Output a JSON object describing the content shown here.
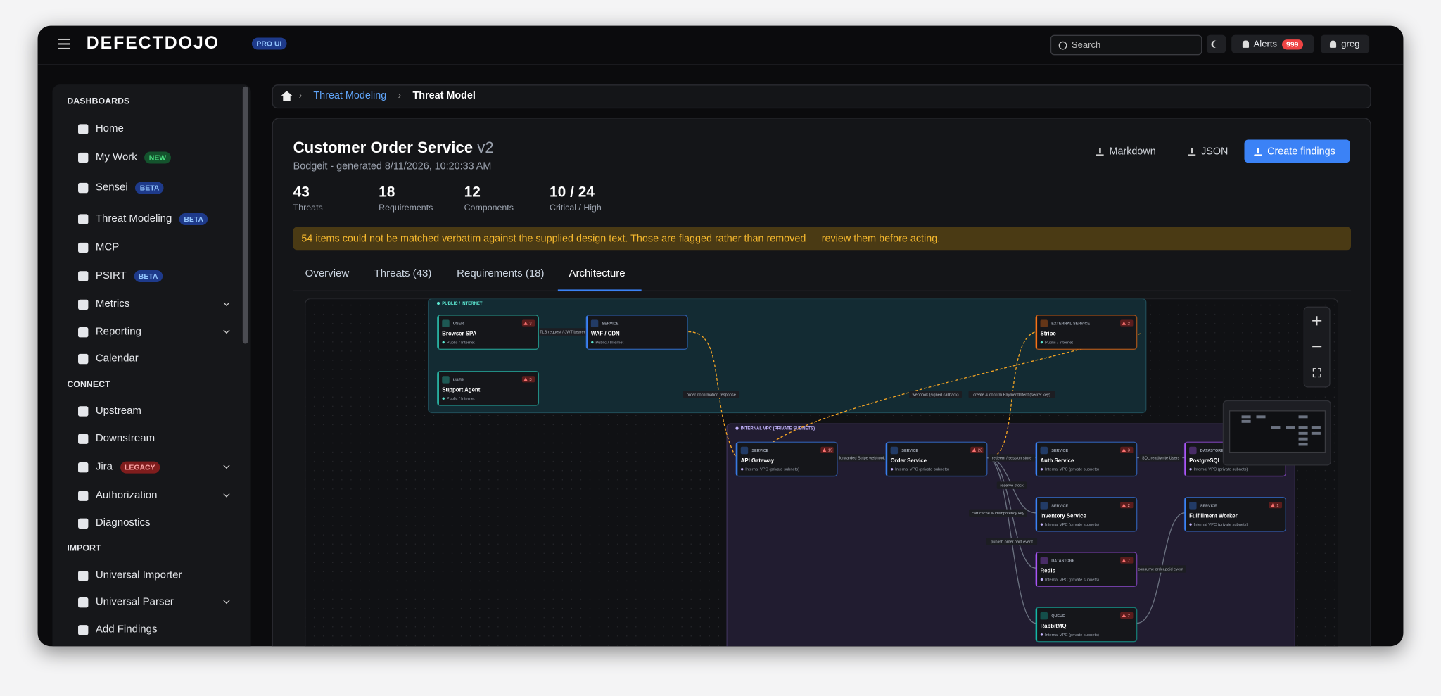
{
  "header": {
    "brand": "DEFECTDOJO",
    "edition": "PRO UI",
    "search_placeholder": "Search",
    "alerts": "Alerts",
    "alerts_count": "999",
    "user": "greg"
  },
  "sidebar": {
    "sections": [
      {
        "title": "DASHBOARDS",
        "items": [
          {
            "label": "Home"
          },
          {
            "label": "My Work",
            "badge": "NEW"
          },
          {
            "label": "Sensei",
            "badge": "BETA"
          },
          {
            "label": "Threat Modeling",
            "badge": "BETA"
          },
          {
            "label": "MCP"
          },
          {
            "label": "PSIRT",
            "badge": "BETA"
          },
          {
            "label": "Metrics",
            "expandable": true
          },
          {
            "label": "Reporting",
            "expandable": true
          },
          {
            "label": "Calendar"
          }
        ]
      },
      {
        "title": "CONNECT",
        "items": [
          {
            "label": "Upstream"
          },
          {
            "label": "Downstream"
          },
          {
            "label": "Jira",
            "badge": "LEGACY",
            "expandable": true
          },
          {
            "label": "Authorization",
            "expandable": true
          },
          {
            "label": "Diagnostics"
          }
        ]
      },
      {
        "title": "IMPORT",
        "items": [
          {
            "label": "Universal Importer"
          },
          {
            "label": "Universal Parser",
            "expandable": true
          },
          {
            "label": "Add Findings"
          }
        ]
      }
    ]
  },
  "breadcrumb": [
    "Threat Modeling",
    "Threat Model"
  ],
  "page": {
    "title": "Customer Order Service",
    "version": "v2",
    "subtitle": "Bodgeit - generated 8/11/2026, 10:20:33 AM",
    "actions": [
      "Markdown",
      "JSON",
      "Create findings"
    ],
    "stats": [
      {
        "value": 43,
        "label": "Threats"
      },
      {
        "value": 18,
        "label": "Requirements"
      },
      {
        "value": 12,
        "label": "Components"
      },
      {
        "value": "10 / 24",
        "label": "Critical / High"
      }
    ],
    "warning": "54 items could not be matched verbatim against the supplied design text. Those are flagged rather than removed — review them before acting.",
    "tabs": [
      "Overview",
      "Threats (43)",
      "Requirements (18)",
      "Architecture"
    ],
    "active_tab": 3
  },
  "diagram": {
    "zones": [
      {
        "label": "PUBLIC / INTERNET",
        "caption": "Public / Internet",
        "nodes": [
          {
            "kind": "USER",
            "label": "Browser SPA",
            "threats": 3
          },
          {
            "kind": "SERVICE",
            "label": "WAF / CDN"
          },
          {
            "kind": "USER",
            "label": "Support Agent",
            "threats": 3
          },
          {
            "kind": "EXTERNAL SERVICE",
            "label": "Stripe",
            "threats": 2
          }
        ]
      },
      {
        "label": "INTERNAL VPC (PRIVATE SUBNETS)",
        "caption": "Internal VPC (private subnets)",
        "nodes": [
          {
            "kind": "SERVICE",
            "label": "API Gateway",
            "threats": 15
          },
          {
            "kind": "SERVICE",
            "label": "Order Service",
            "threats": 23
          },
          {
            "kind": "SERVICE",
            "label": "Auth Service",
            "threats": 3
          },
          {
            "kind": "DATASTORE",
            "label": "PostgreSQL"
          },
          {
            "kind": "SERVICE",
            "label": "Inventory Service",
            "threats": 2
          },
          {
            "kind": "SERVICE",
            "label": "Fulfillment Worker",
            "threats": 1
          },
          {
            "kind": "DATASTORE",
            "label": "Redis",
            "threats": 7
          },
          {
            "kind": "QUEUE",
            "label": "RabbitMQ",
            "threats": 7
          }
        ]
      }
    ],
    "edges": [
      "TLS request / JWT bearer",
      "order confirmation response",
      "webhook (signed callback)",
      "create & confirm PaymentIntent (secret key)",
      "forwarded Stripe webhook",
      "redeem / session store",
      "SQL read/write Users",
      "reserve stock",
      "cart cache & idempotency key",
      "publish order.paid event",
      "consume order.paid event"
    ]
  }
}
